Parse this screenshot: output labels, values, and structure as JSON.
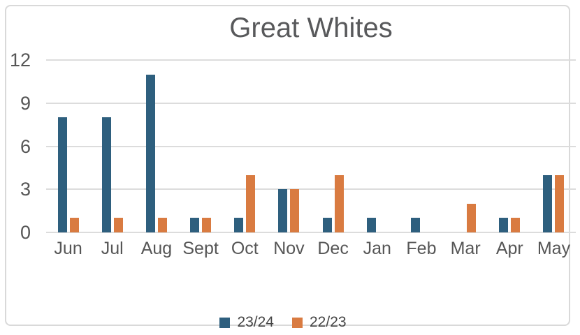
{
  "title": "Great Whites",
  "colors": {
    "series_23_24": "#2e5f7e",
    "series_22_23": "#d97b41",
    "gridline": "#dcdcdc",
    "frame_border": "#d9d9d9",
    "axis_text": "#565656",
    "title_text": "#58595b"
  },
  "chart_data": {
    "type": "bar",
    "title": "Great Whites",
    "categories": [
      "Jun",
      "Jul",
      "Aug",
      "Sept",
      "Oct",
      "Nov",
      "Dec",
      "Jan",
      "Feb",
      "Mar",
      "Apr",
      "May"
    ],
    "series": [
      {
        "name": "23/24",
        "color": "#2e5f7e",
        "values": [
          8,
          8,
          11,
          1,
          1,
          3,
          1,
          1,
          1,
          0,
          1,
          4
        ]
      },
      {
        "name": "22/23",
        "color": "#d97b41",
        "values": [
          1,
          1,
          1,
          1,
          4,
          3,
          4,
          0,
          0,
          2,
          1,
          4
        ]
      }
    ],
    "xlabel": "",
    "ylabel": "",
    "ylim": [
      0,
      12
    ],
    "yticks": [
      0,
      3,
      6,
      9,
      12
    ],
    "grid": true,
    "legend_position": "bottom"
  }
}
